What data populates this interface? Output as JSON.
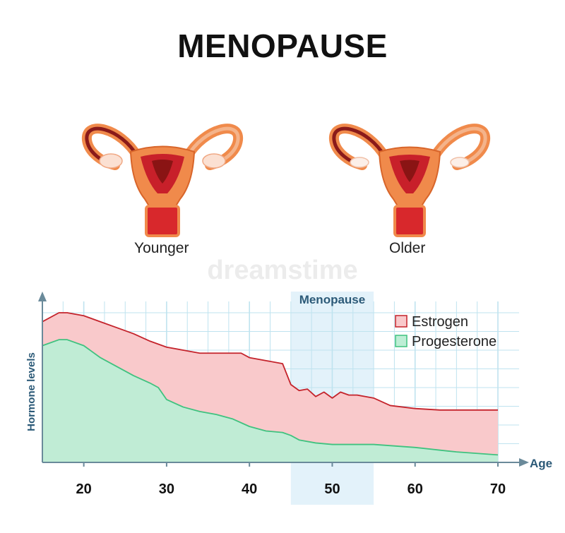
{
  "title": "MENOPAUSE",
  "illustrations": [
    {
      "caption": "Younger"
    },
    {
      "caption": "Older"
    }
  ],
  "watermark": "dreamstime",
  "colors": {
    "estrogen_fill": "#f9c9cb",
    "estrogen_line": "#c4232b",
    "progesterone_fill": "#bdeed5",
    "progesterone_line": "#3fc27f",
    "grid": "#bfe3ef",
    "axis": "#6a8a9a",
    "menopause_band": "#e3f2fa",
    "organ_outer": "#f08a4b",
    "organ_inner": "#c8202a"
  },
  "chart_data": {
    "type": "area",
    "xlabel": "Age",
    "ylabel": "Hormone levels",
    "xlim": [
      15,
      70
    ],
    "ylim": [
      0,
      100
    ],
    "x_ticks": [
      20,
      30,
      40,
      50,
      60,
      70
    ],
    "grid": true,
    "legend_position": "top-right",
    "band": {
      "label": "Menopause",
      "from": 45,
      "to": 55
    },
    "series": [
      {
        "name": "Estrogen",
        "x": [
          15,
          17,
          18,
          20,
          22,
          24,
          26,
          28,
          30,
          32,
          34,
          36,
          38,
          39,
          40,
          42,
          44,
          45,
          46,
          47,
          48,
          49,
          50,
          51,
          52,
          53,
          54,
          55,
          57,
          60,
          63,
          66,
          70
        ],
        "values": [
          94,
          100,
          100,
          98,
          94,
          90,
          86,
          81,
          77,
          75,
          73,
          73,
          73,
          73,
          70,
          68,
          66,
          52,
          48,
          49,
          44,
          47,
          43,
          47,
          45,
          45,
          44,
          43,
          38,
          36,
          35,
          35,
          35
        ]
      },
      {
        "name": "Progesterone",
        "x": [
          15,
          17,
          18,
          20,
          22,
          24,
          26,
          28,
          29,
          30,
          32,
          34,
          36,
          38,
          40,
          42,
          44,
          45,
          46,
          48,
          50,
          55,
          60,
          65,
          70
        ],
        "values": [
          78,
          82,
          82,
          78,
          70,
          64,
          58,
          53,
          50,
          42,
          37,
          34,
          32,
          29,
          24,
          21,
          20,
          18,
          15,
          13,
          12,
          12,
          10,
          7,
          5
        ]
      }
    ]
  }
}
